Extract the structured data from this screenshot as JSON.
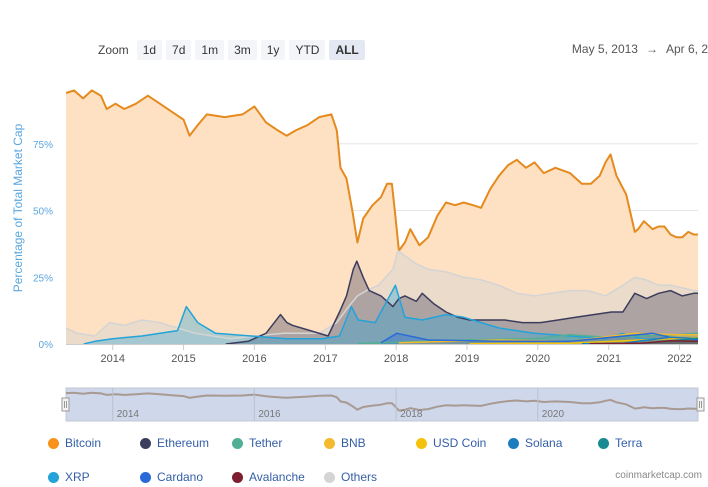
{
  "toolbar": {
    "zoom_label": "Zoom",
    "buttons": [
      "1d",
      "7d",
      "1m",
      "3m",
      "1y",
      "YTD",
      "ALL"
    ],
    "active": "ALL"
  },
  "date_range": {
    "from": "May 5, 2013",
    "arrow": "→",
    "to": "Apr 6, 2"
  },
  "credit": "coinmarketcap.com",
  "colors": {
    "bitcoin": "#f7931a",
    "bitcoin_line": "#e58a1f",
    "bitcoin_fill": "#fde1c2",
    "ethereum": "#3c3c5d",
    "tether": "#50af95",
    "bnb": "#f3ba2f",
    "usd_coin": "#f4c20d",
    "solana": "#1d7cc0",
    "terra": "#1a8a92",
    "xrp": "#23a3d9",
    "cardano": "#2a6ad8",
    "avalanche": "#7d1f2e",
    "others": "#d4d4d4",
    "axis_title": "#5aa6e0",
    "navigator_fill": "#cfd7ea"
  },
  "chart_data": {
    "type": "area",
    "ylabel": "Percentage of Total Market Cap",
    "ylim": [
      0,
      100
    ],
    "yticks": [
      "0%",
      "25%",
      "50%",
      "75%"
    ],
    "xlim": [
      "2013-05-05",
      "2022-04-06"
    ],
    "xticks": [
      "2014",
      "2015",
      "2016",
      "2017",
      "2018",
      "2019",
      "2020",
      "2021",
      "2022"
    ],
    "navigator_ticks": [
      "2014",
      "2016",
      "2018",
      "2020"
    ],
    "grid": true,
    "legend_position": "bottom",
    "series": [
      {
        "name": "Bitcoin",
        "key": "bitcoin",
        "points": [
          [
            "2013-05-05",
            94
          ],
          [
            "2013-06-15",
            95
          ],
          [
            "2013-08-01",
            92
          ],
          [
            "2013-09-15",
            95
          ],
          [
            "2013-11-01",
            93
          ],
          [
            "2013-12-01",
            88
          ],
          [
            "2014-01-15",
            90
          ],
          [
            "2014-03-01",
            88
          ],
          [
            "2014-05-01",
            90
          ],
          [
            "2014-07-01",
            93
          ],
          [
            "2014-09-01",
            90
          ],
          [
            "2014-11-01",
            87
          ],
          [
            "2015-01-01",
            84
          ],
          [
            "2015-02-01",
            78
          ],
          [
            "2015-03-15",
            82
          ],
          [
            "2015-05-01",
            86
          ],
          [
            "2015-08-01",
            85
          ],
          [
            "2015-11-01",
            86
          ],
          [
            "2016-01-01",
            89
          ],
          [
            "2016-03-01",
            83
          ],
          [
            "2016-05-01",
            80
          ],
          [
            "2016-06-15",
            78
          ],
          [
            "2016-08-01",
            80
          ],
          [
            "2016-10-01",
            82
          ],
          [
            "2016-12-01",
            85
          ],
          [
            "2017-02-01",
            86
          ],
          [
            "2017-03-01",
            80
          ],
          [
            "2017-03-20",
            66
          ],
          [
            "2017-04-20",
            62
          ],
          [
            "2017-05-20",
            50
          ],
          [
            "2017-06-15",
            38
          ],
          [
            "2017-07-15",
            47
          ],
          [
            "2017-09-01",
            52
          ],
          [
            "2017-10-15",
            55
          ],
          [
            "2017-11-15",
            60
          ],
          [
            "2017-12-10",
            60
          ],
          [
            "2017-12-25",
            50
          ],
          [
            "2018-01-15",
            35
          ],
          [
            "2018-02-15",
            38
          ],
          [
            "2018-03-15",
            43
          ],
          [
            "2018-05-01",
            37
          ],
          [
            "2018-06-15",
            40
          ],
          [
            "2018-08-01",
            48
          ],
          [
            "2018-09-15",
            53
          ],
          [
            "2018-11-01",
            52
          ],
          [
            "2018-12-15",
            53
          ],
          [
            "2019-02-01",
            52
          ],
          [
            "2019-03-15",
            51
          ],
          [
            "2019-05-01",
            58
          ],
          [
            "2019-06-15",
            63
          ],
          [
            "2019-08-01",
            67
          ],
          [
            "2019-09-15",
            69
          ],
          [
            "2019-11-01",
            66
          ],
          [
            "2019-12-15",
            68
          ],
          [
            "2020-02-01",
            64
          ],
          [
            "2020-04-01",
            66
          ],
          [
            "2020-06-15",
            64
          ],
          [
            "2020-08-15",
            60
          ],
          [
            "2020-10-01",
            60
          ],
          [
            "2020-11-15",
            63
          ],
          [
            "2020-12-15",
            68
          ],
          [
            "2021-01-10",
            71
          ],
          [
            "2021-02-10",
            63
          ],
          [
            "2021-04-01",
            56
          ],
          [
            "2021-05-15",
            42
          ],
          [
            "2021-06-01",
            43
          ],
          [
            "2021-07-01",
            46
          ],
          [
            "2021-08-15",
            43
          ],
          [
            "2021-09-15",
            44
          ],
          [
            "2021-10-15",
            44
          ],
          [
            "2021-11-15",
            41
          ],
          [
            "2021-12-15",
            40
          ],
          [
            "2022-01-15",
            40
          ],
          [
            "2022-02-15",
            42
          ],
          [
            "2022-03-15",
            41
          ],
          [
            "2022-04-06",
            41
          ]
        ]
      },
      {
        "name": "Ethereum",
        "key": "ethereum",
        "points": [
          [
            "2015-08-07",
            0
          ],
          [
            "2015-12-01",
            1
          ],
          [
            "2016-03-01",
            4
          ],
          [
            "2016-05-15",
            11
          ],
          [
            "2016-06-17",
            8
          ],
          [
            "2016-07-15",
            7
          ],
          [
            "2016-10-15",
            5
          ],
          [
            "2017-01-15",
            3
          ],
          [
            "2017-03-15",
            12
          ],
          [
            "2017-04-20",
            18
          ],
          [
            "2017-05-25",
            28
          ],
          [
            "2017-06-12",
            31
          ],
          [
            "2017-07-15",
            25
          ],
          [
            "2017-08-15",
            20
          ],
          [
            "2017-10-15",
            18
          ],
          [
            "2017-12-15",
            14
          ],
          [
            "2018-01-15",
            17
          ],
          [
            "2018-02-15",
            18
          ],
          [
            "2018-04-15",
            16
          ],
          [
            "2018-05-15",
            19
          ],
          [
            "2018-07-15",
            15
          ],
          [
            "2018-09-15",
            12
          ],
          [
            "2018-11-15",
            10
          ],
          [
            "2019-01-15",
            9
          ],
          [
            "2019-04-15",
            9
          ],
          [
            "2019-07-15",
            9
          ],
          [
            "2019-10-15",
            8
          ],
          [
            "2020-01-15",
            8
          ],
          [
            "2020-04-15",
            9
          ],
          [
            "2020-07-15",
            10
          ],
          [
            "2020-10-15",
            11
          ],
          [
            "2021-01-15",
            12
          ],
          [
            "2021-03-15",
            12
          ],
          [
            "2021-05-15",
            19
          ],
          [
            "2021-07-15",
            17
          ],
          [
            "2021-09-15",
            19
          ],
          [
            "2021-11-15",
            20
          ],
          [
            "2022-01-15",
            18
          ],
          [
            "2022-03-15",
            19
          ],
          [
            "2022-04-06",
            19
          ]
        ]
      },
      {
        "name": "Others",
        "key": "others",
        "points": [
          [
            "2013-05-05",
            6
          ],
          [
            "2013-07-01",
            4
          ],
          [
            "2013-10-01",
            3
          ],
          [
            "2013-12-15",
            8
          ],
          [
            "2014-03-01",
            7
          ],
          [
            "2014-06-01",
            9
          ],
          [
            "2014-09-01",
            8
          ],
          [
            "2014-12-01",
            6
          ],
          [
            "2015-03-01",
            4
          ],
          [
            "2015-06-01",
            3
          ],
          [
            "2015-09-01",
            2
          ],
          [
            "2016-01-01",
            3
          ],
          [
            "2016-06-01",
            4
          ],
          [
            "2016-12-01",
            4
          ],
          [
            "2017-03-01",
            8
          ],
          [
            "2017-05-01",
            14
          ],
          [
            "2017-06-15",
            18
          ],
          [
            "2017-08-01",
            20
          ],
          [
            "2017-10-01",
            22
          ],
          [
            "2017-12-15",
            28
          ],
          [
            "2018-01-10",
            35
          ],
          [
            "2018-02-15",
            33
          ],
          [
            "2018-04-15",
            30
          ],
          [
            "2018-06-15",
            28
          ],
          [
            "2018-09-15",
            27
          ],
          [
            "2018-12-15",
            25
          ],
          [
            "2019-03-15",
            24
          ],
          [
            "2019-06-15",
            22
          ],
          [
            "2019-09-15",
            19
          ],
          [
            "2019-12-15",
            18
          ],
          [
            "2020-03-15",
            19
          ],
          [
            "2020-06-15",
            20
          ],
          [
            "2020-09-15",
            20
          ],
          [
            "2020-12-15",
            18
          ],
          [
            "2021-03-15",
            22
          ],
          [
            "2021-05-15",
            25
          ],
          [
            "2021-07-15",
            24
          ],
          [
            "2021-09-15",
            22
          ],
          [
            "2021-11-15",
            22
          ],
          [
            "2022-01-15",
            21
          ],
          [
            "2022-03-15",
            20
          ],
          [
            "2022-04-06",
            20
          ]
        ]
      },
      {
        "name": "XRP",
        "key": "xrp",
        "points": [
          [
            "2013-08-04",
            0
          ],
          [
            "2013-10-01",
            1
          ],
          [
            "2014-01-01",
            2
          ],
          [
            "2014-06-01",
            3
          ],
          [
            "2014-12-01",
            5
          ],
          [
            "2015-01-15",
            14
          ],
          [
            "2015-03-15",
            8
          ],
          [
            "2015-06-15",
            4
          ],
          [
            "2015-12-15",
            3
          ],
          [
            "2016-06-15",
            2
          ],
          [
            "2016-12-15",
            2
          ],
          [
            "2017-03-15",
            3
          ],
          [
            "2017-05-15",
            14
          ],
          [
            "2017-06-20",
            9
          ],
          [
            "2017-09-15",
            8
          ],
          [
            "2017-12-28",
            22
          ],
          [
            "2018-02-15",
            10
          ],
          [
            "2018-05-15",
            9
          ],
          [
            "2018-09-15",
            11
          ],
          [
            "2018-12-15",
            10
          ],
          [
            "2019-03-15",
            8
          ],
          [
            "2019-06-15",
            6
          ],
          [
            "2019-12-15",
            4
          ],
          [
            "2020-06-15",
            3
          ],
          [
            "2020-12-15",
            2
          ],
          [
            "2021-03-15",
            4
          ],
          [
            "2021-06-15",
            2
          ],
          [
            "2021-12-15",
            2
          ],
          [
            "2022-04-06",
            2
          ]
        ]
      },
      {
        "name": "Tether",
        "key": "tether",
        "points": [
          [
            "2017-06-15",
            0.2
          ],
          [
            "2018-01-15",
            0.7
          ],
          [
            "2018-12-15",
            1.5
          ],
          [
            "2019-12-15",
            2
          ],
          [
            "2020-06-15",
            3.5
          ],
          [
            "2020-12-15",
            2.5
          ],
          [
            "2021-06-15",
            3
          ],
          [
            "2021-12-15",
            3.5
          ],
          [
            "2022-04-06",
            4
          ]
        ]
      },
      {
        "name": "BNB",
        "key": "bnb",
        "points": [
          [
            "2018-01-15",
            0.5
          ],
          [
            "2019-06-15",
            1.5
          ],
          [
            "2020-06-15",
            1
          ],
          [
            "2021-05-15",
            4
          ],
          [
            "2021-12-15",
            3.5
          ],
          [
            "2022-04-06",
            3.5
          ]
        ]
      },
      {
        "name": "USD Coin",
        "key": "usd_coin",
        "points": [
          [
            "2019-01-15",
            0.1
          ],
          [
            "2020-06-15",
            0.3
          ],
          [
            "2021-06-15",
            1.5
          ],
          [
            "2022-04-06",
            2.4
          ]
        ]
      },
      {
        "name": "Solana",
        "key": "solana",
        "points": [
          [
            "2020-08-15",
            0.1
          ],
          [
            "2021-03-15",
            0.3
          ],
          [
            "2021-09-15",
            2
          ],
          [
            "2021-11-15",
            2.5
          ],
          [
            "2022-04-06",
            2
          ]
        ]
      },
      {
        "name": "Terra",
        "key": "terra",
        "points": [
          [
            "2020-10-15",
            0.1
          ],
          [
            "2021-06-15",
            0.3
          ],
          [
            "2022-01-15",
            1.5
          ],
          [
            "2022-04-06",
            2.2
          ]
        ]
      },
      {
        "name": "Cardano",
        "key": "cardano",
        "points": [
          [
            "2017-10-15",
            0.5
          ],
          [
            "2018-01-05",
            4
          ],
          [
            "2018-06-15",
            1.5
          ],
          [
            "2019-06-15",
            1
          ],
          [
            "2020-06-15",
            1
          ],
          [
            "2021-08-15",
            4
          ],
          [
            "2021-12-15",
            2
          ],
          [
            "2022-04-06",
            1.6
          ]
        ]
      },
      {
        "name": "Avalanche",
        "key": "avalanche",
        "points": [
          [
            "2020-09-25",
            0.1
          ],
          [
            "2021-06-15",
            0.3
          ],
          [
            "2021-11-15",
            1.2
          ],
          [
            "2022-04-06",
            1
          ]
        ]
      }
    ],
    "legend": [
      [
        "Bitcoin",
        "Ethereum",
        "Tether",
        "BNB",
        "USD Coin",
        "Solana",
        "Terra"
      ],
      [
        "XRP",
        "Cardano",
        "Avalanche",
        "Others"
      ]
    ]
  }
}
